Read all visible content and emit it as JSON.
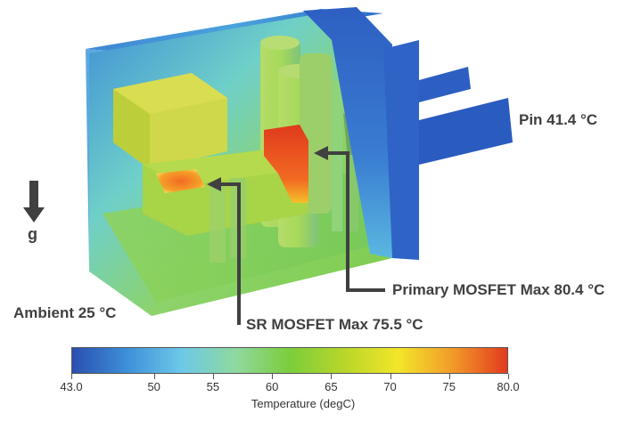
{
  "annotations": {
    "pin": "Pin 41.4 °C",
    "ambient": "Ambient 25 °C",
    "primary_mosfet": "Primary MOSFET Max 80.4 °C",
    "sr_mosfet": "SR MOSFET Max 75.5 °C",
    "gravity": "g"
  },
  "colorbar": {
    "title": "Temperature (degC)",
    "min": 43.0,
    "max": 80.0,
    "ticks": [
      "43.0",
      "50",
      "55",
      "60",
      "65",
      "70",
      "75",
      "80.0"
    ],
    "tick_values": [
      43.0,
      50,
      55,
      60,
      65,
      70,
      75,
      80.0
    ],
    "colors": [
      "#2a4fb0",
      "#3d8fd8",
      "#6cc8e8",
      "#8fd9a0",
      "#7ccd3c",
      "#b8d62a",
      "#f3e62a",
      "#f29a2a",
      "#e23a1e"
    ]
  }
}
